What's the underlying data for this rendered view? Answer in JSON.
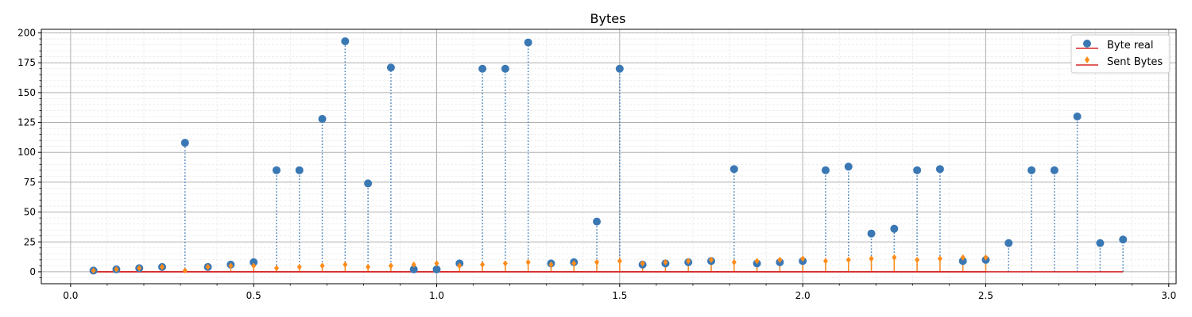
{
  "chart_data": {
    "type": "scatter",
    "title": "Bytes",
    "xlabel": "",
    "ylabel": "",
    "xlim": [
      -0.08,
      3.02
    ],
    "ylim": [
      -10,
      203
    ],
    "x_ticks": [
      0.0,
      0.5,
      1.0,
      1.5,
      2.0,
      2.5,
      3.0
    ],
    "x_tick_labels": [
      "0.0",
      "0.5",
      "1.0",
      "1.5",
      "2.0",
      "2.5",
      "3.0"
    ],
    "y_ticks": [
      0,
      25,
      50,
      75,
      100,
      125,
      150,
      175,
      200
    ],
    "y_tick_labels": [
      "0",
      "25",
      "50",
      "75",
      "100",
      "125",
      "150",
      "175",
      "200"
    ],
    "grid": true,
    "legend_position": "top-right",
    "x": [
      0.0625,
      0.125,
      0.1875,
      0.25,
      0.3125,
      0.375,
      0.4375,
      0.5,
      0.5625,
      0.625,
      0.6875,
      0.75,
      0.8125,
      0.875,
      0.9375,
      1.0,
      1.0625,
      1.125,
      1.1875,
      1.25,
      1.3125,
      1.375,
      1.4375,
      1.5,
      1.5625,
      1.625,
      1.6875,
      1.75,
      1.8125,
      1.875,
      1.9375,
      2.0,
      2.0625,
      2.125,
      2.1875,
      2.25,
      2.3125,
      2.375,
      2.4375,
      2.5,
      2.5625,
      2.625,
      2.6875,
      2.75,
      2.8125,
      2.875
    ],
    "series": [
      {
        "name": "Byte real",
        "marker": "circle",
        "color": "#3a78b4",
        "line_style": "dotted",
        "values": [
          1,
          2,
          3,
          4,
          108,
          4,
          6,
          8,
          85,
          85,
          128,
          193,
          74,
          171,
          2,
          2,
          7,
          170,
          170,
          192,
          7,
          8,
          42,
          170,
          6,
          7,
          8,
          9,
          86,
          7,
          8,
          9,
          85,
          88,
          32,
          36,
          85,
          86,
          9,
          10,
          24,
          85,
          85,
          130,
          24,
          27
        ]
      },
      {
        "name": "Sent Bytes",
        "marker": "diamond",
        "color": "#ff8c1a",
        "line_style": "solid",
        "values": [
          1,
          2,
          3,
          4,
          1,
          4,
          5,
          5,
          3,
          4,
          5,
          6,
          4,
          5,
          6,
          7,
          5,
          6,
          7,
          8,
          6,
          7,
          8,
          9,
          7,
          8,
          9,
          10,
          8,
          9,
          10,
          11,
          9,
          10,
          11,
          12,
          10,
          11,
          12,
          12,
          null,
          null,
          null,
          null,
          null,
          null
        ]
      }
    ],
    "baseline": {
      "value": 0,
      "color": "#d62728"
    }
  }
}
